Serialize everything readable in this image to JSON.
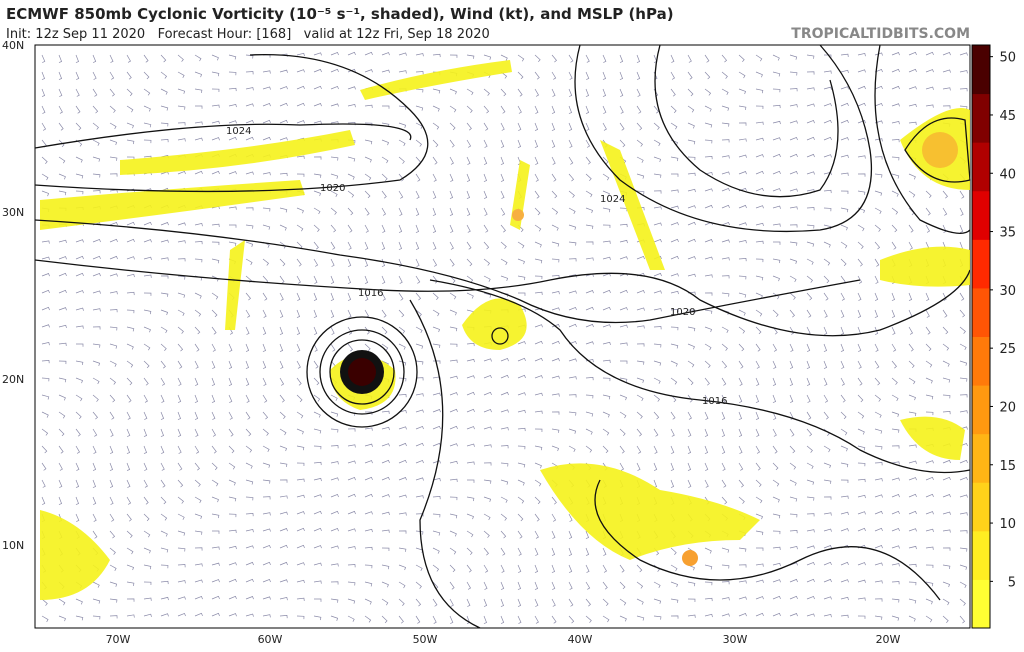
{
  "header": {
    "title": "ECMWF 850mb Cyclonic Vorticity (10⁻⁵ s⁻¹, shaded), Wind (kt), and MSLP (hPa)",
    "subtitle": "Init: 12z Sep 11 2020   Forecast Hour: [168]   valid at 12z Fri, Sep 18 2020",
    "site": "TROPICALTIDBITS.COM"
  },
  "map": {
    "lat_labels": [
      "40N",
      "30N",
      "20N",
      "10N"
    ],
    "lon_labels": [
      "70W",
      "60W",
      "50W",
      "40W",
      "30W",
      "20W"
    ],
    "isobar_labels": [
      "1024",
      "1020",
      "1024",
      "1016",
      "1020",
      "1016"
    ]
  },
  "colorbar": {
    "range": [
      1,
      51
    ],
    "ticks": [
      5,
      10,
      15,
      20,
      25,
      30,
      35,
      40,
      45,
      50
    ],
    "colors": [
      "#ffff33",
      "#ffee22",
      "#ffd21a",
      "#ffb515",
      "#ff9910",
      "#ff7a0a",
      "#ff5505",
      "#ff2a00",
      "#e00000",
      "#b00000",
      "#800000",
      "#4a0000"
    ]
  }
}
